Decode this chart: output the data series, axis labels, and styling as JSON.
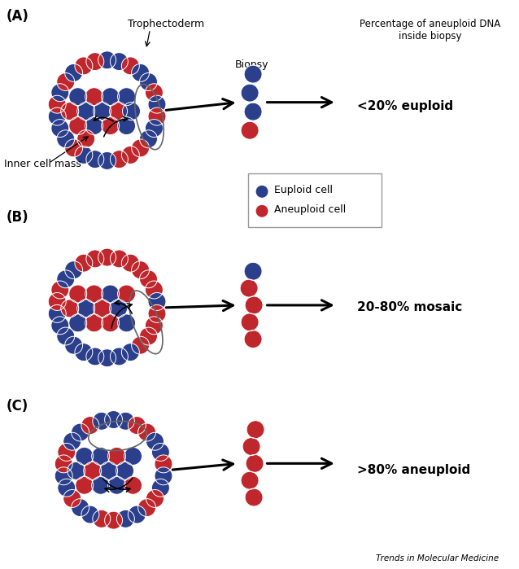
{
  "blue": "#2B3F8C",
  "red": "#C0272D",
  "bg": "#FFFFFF",
  "panel_labels": [
    "(A)",
    "(B)",
    "(C)"
  ],
  "result_texts": [
    "<20% euploid",
    "20-80% mosaic",
    ">80% aneuploid"
  ],
  "trophectoderm_label": "Trophectoderm",
  "inner_cell_mass_label": "Inner cell mass",
  "biopsy_label": "Biopsy",
  "percentage_label": "Percentage of aneuploid DNA\ninside biopsy",
  "legend_euploid": "Euploid cell",
  "legend_aneuploid": "Aneuploid cell",
  "footer": "Trends in Molecular Medicine",
  "panel_A_outer_colors": [
    1,
    1,
    0,
    1,
    1,
    0,
    1,
    0,
    1,
    1,
    0,
    0,
    0,
    1,
    1,
    1,
    0,
    1,
    1,
    1,
    0,
    1,
    0,
    1,
    0,
    0
  ],
  "panel_A_inner_colors": [
    1,
    0,
    1,
    1,
    0,
    1,
    1,
    0,
    1,
    0,
    1,
    0,
    1,
    0
  ],
  "panel_B_outer_colors": [
    0,
    0,
    0,
    0,
    0,
    0,
    1,
    0,
    0,
    0,
    0,
    1,
    1,
    1,
    1,
    1,
    1,
    1,
    1,
    1,
    0,
    0,
    1,
    1,
    0,
    0
  ],
  "panel_B_inner_colors": [
    0,
    0,
    1,
    0,
    0,
    1,
    0,
    1,
    1,
    0,
    0,
    1
  ],
  "panel_C_outer_colors": [
    1,
    1,
    0,
    0,
    1,
    1,
    0,
    1,
    1,
    0,
    0,
    1,
    1,
    0,
    0,
    1,
    1,
    0,
    1,
    1,
    0,
    0,
    1,
    1,
    0,
    1
  ],
  "panel_C_inner_colors": [
    1,
    1,
    0,
    1,
    1,
    0,
    1,
    1,
    0,
    1,
    1,
    0
  ]
}
